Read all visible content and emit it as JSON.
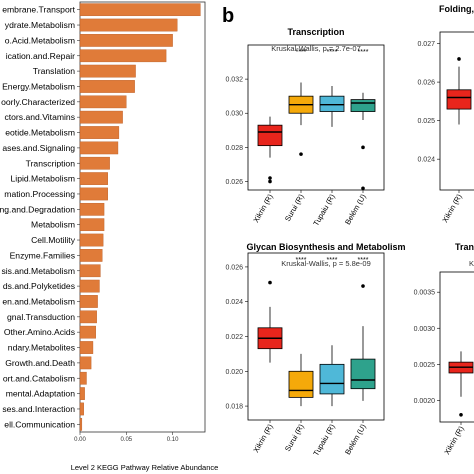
{
  "panel_label": "b",
  "chart_data": [
    {
      "type": "bar",
      "orientation": "horizontal",
      "xlabel": "Level 2 KEGG Pathway Relative Abundance",
      "xlim": [
        0,
        0.135
      ],
      "xticks": [
        "0.00",
        "0.05",
        "0.10"
      ],
      "bar_color": "#e07b39",
      "categories": [
        "embrane.Transport",
        "ydrate.Metabolism",
        "o.Acid.Metabolism",
        "ication.and.Repair",
        "Translation",
        "Energy.Metabolism",
        "oorly.Characterized",
        "ctors.and.Vitamins",
        "eotide.Metabolism",
        "ases.and.Signaling",
        "Transcription",
        "Lipid.Metabolism",
        "mation.Processing",
        "ng.and.Degradation",
        "Metabolism",
        "Cell.Motility",
        "Enzyme.Families",
        "sis.and.Metabolism",
        "ds.and.Polyketides",
        "en.and.Metabolism",
        "gnal.Transduction",
        "Other.Amino.Acids",
        "ndary.Metabolites",
        "Growth.and.Death",
        "ort.and.Catabolism",
        "mental.Adaptation",
        "ses.and.Interaction",
        "ell.Communication"
      ],
      "values": [
        0.13,
        0.105,
        0.1,
        0.093,
        0.06,
        0.059,
        0.05,
        0.046,
        0.042,
        0.041,
        0.032,
        0.03,
        0.03,
        0.026,
        0.026,
        0.025,
        0.024,
        0.022,
        0.021,
        0.019,
        0.018,
        0.017,
        0.014,
        0.012,
        0.007,
        0.005,
        0.004,
        0.002
      ]
    },
    {
      "type": "box",
      "title": "Transcription",
      "subtitle": "Kruskal-Wallis, p = 2.7e-07",
      "categories": [
        "Xikrin (R)",
        "Surui (R)",
        "Tupaiu (R)",
        "Belém (U)"
      ],
      "colors": [
        "#e8251c",
        "#f5a90a",
        "#4fb8d8",
        "#2ea28c"
      ],
      "ylim": [
        0.0255,
        0.034
      ],
      "yticks": [
        "0.026",
        "0.028",
        "0.030",
        "0.032"
      ],
      "significance": [
        "",
        "****",
        "****",
        "****"
      ],
      "boxes": [
        {
          "min": 0.0274,
          "q1": 0.0281,
          "median": 0.0289,
          "q3": 0.0293,
          "max": 0.0298,
          "outliers": [
            0.0262,
            0.026
          ]
        },
        {
          "min": 0.0293,
          "q1": 0.03,
          "median": 0.0305,
          "q3": 0.031,
          "max": 0.0318,
          "outliers": [
            0.0276
          ]
        },
        {
          "min": 0.0292,
          "q1": 0.0301,
          "median": 0.0305,
          "q3": 0.031,
          "max": 0.0316,
          "outliers": []
        },
        {
          "min": 0.0296,
          "q1": 0.0301,
          "median": 0.0306,
          "q3": 0.0308,
          "max": 0.0312,
          "outliers": [
            0.028,
            0.0256
          ]
        }
      ]
    },
    {
      "type": "box",
      "title": "Glycan Biosynthesis and Metabolism",
      "subtitle": "Kruskal-Wallis, p = 5.8e-09",
      "categories": [
        "Xikrin (R)",
        "Surui (R)",
        "Tupaiu (R)",
        "Belém (U)"
      ],
      "colors": [
        "#e8251c",
        "#f5a90a",
        "#4fb8d8",
        "#2ea28c"
      ],
      "ylim": [
        0.0172,
        0.0268
      ],
      "yticks": [
        "0.018",
        "0.020",
        "0.022",
        "0.024",
        "0.026"
      ],
      "significance": [
        "",
        "****",
        "****",
        "****"
      ],
      "boxes": [
        {
          "min": 0.0205,
          "q1": 0.0213,
          "median": 0.0219,
          "q3": 0.0225,
          "max": 0.0237,
          "outliers": [
            0.0251
          ]
        },
        {
          "min": 0.018,
          "q1": 0.0185,
          "median": 0.0189,
          "q3": 0.02,
          "max": 0.021,
          "outliers": []
        },
        {
          "min": 0.018,
          "q1": 0.0187,
          "median": 0.0193,
          "q3": 0.0204,
          "max": 0.0215,
          "outliers": []
        },
        {
          "min": 0.0183,
          "q1": 0.019,
          "median": 0.0195,
          "q3": 0.0207,
          "max": 0.0226,
          "outliers": [
            0.0249
          ]
        }
      ]
    },
    {
      "type": "box",
      "title": "Folding,",
      "categories": [
        "Xikrin (R)"
      ],
      "colors": [
        "#e8251c"
      ],
      "ylim": [
        0.0232,
        0.0273
      ],
      "yticks": [
        "0.024",
        "0.025",
        "0.026",
        "0.027"
      ],
      "boxes": [
        {
          "min": 0.0249,
          "q1": 0.0253,
          "median": 0.0256,
          "q3": 0.0258,
          "max": 0.0264,
          "outliers": [
            0.0266
          ]
        }
      ]
    },
    {
      "type": "box",
      "title": "Tran",
      "subtitle": "K",
      "categories": [
        "Xikrin (R)"
      ],
      "colors": [
        "#e8251c"
      ],
      "ylim": [
        0.0017,
        0.00378
      ],
      "yticks": [
        "0.0020",
        "0.0025",
        "0.0030",
        "0.0035"
      ],
      "boxes": [
        {
          "min": 0.00205,
          "q1": 0.00238,
          "median": 0.00246,
          "q3": 0.00253,
          "max": 0.00268,
          "outliers": [
            0.0018
          ]
        }
      ]
    }
  ]
}
